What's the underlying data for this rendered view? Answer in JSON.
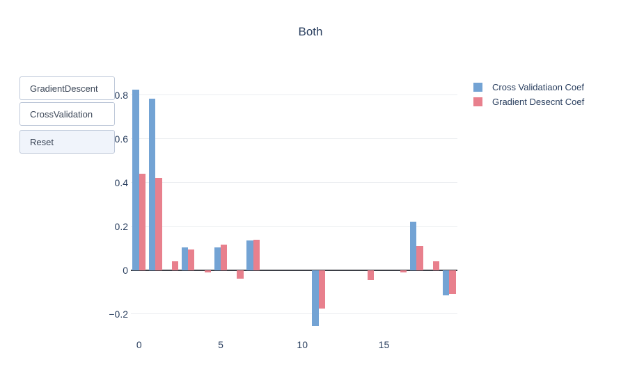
{
  "title": "Both",
  "updatemenu": {
    "buttons": [
      {
        "label": "GradientDescent",
        "active": false
      },
      {
        "label": "CrossValidation",
        "active": false
      },
      {
        "label": "Reset",
        "active": true
      }
    ]
  },
  "legend": {
    "items": [
      {
        "label": "Cross Validatiaon Coef",
        "color": "#73a3d4"
      },
      {
        "label": "Gradient Desecnt Coef",
        "color": "#e8808d"
      }
    ]
  },
  "colors": {
    "series_blue": "#73a3d4",
    "series_pink": "#e8808d",
    "grid": "#ebedf0",
    "zeroline": "#3b3e45",
    "text": "#2a3f5f",
    "button_border": "#bec8d9",
    "button_active_bg": "#f0f4fb"
  },
  "chart_data": {
    "type": "bar",
    "title": "Both",
    "categories": [
      0,
      1,
      2,
      3,
      4,
      5,
      6,
      7,
      8,
      9,
      10,
      11,
      12,
      13,
      14,
      15,
      16,
      17,
      18,
      19
    ],
    "series": [
      {
        "name": "Cross Validatiaon Coef",
        "color": "#73a3d4",
        "values": [
          0.825,
          0.785,
          0,
          0.105,
          0,
          0.105,
          0,
          0.135,
          0,
          0,
          0,
          -0.255,
          0,
          0,
          0,
          0,
          0,
          0.22,
          0,
          -0.115
        ]
      },
      {
        "name": "Gradient Desecnt Coef",
        "color": "#e8808d",
        "values": [
          0.44,
          0.42,
          0.04,
          0.095,
          -0.01,
          0.115,
          -0.04,
          0.14,
          0,
          0,
          0,
          -0.175,
          0,
          0,
          -0.045,
          0,
          -0.01,
          0.11,
          0.04,
          -0.11
        ]
      }
    ],
    "xlabel": "",
    "ylabel": "",
    "xticks": [
      0,
      5,
      10,
      15
    ],
    "yticks": [
      -0.2,
      0,
      0.2,
      0.4,
      0.6,
      0.8
    ],
    "ylim": [
      -0.29,
      0.917
    ],
    "grid": true,
    "legend_position": "right"
  }
}
